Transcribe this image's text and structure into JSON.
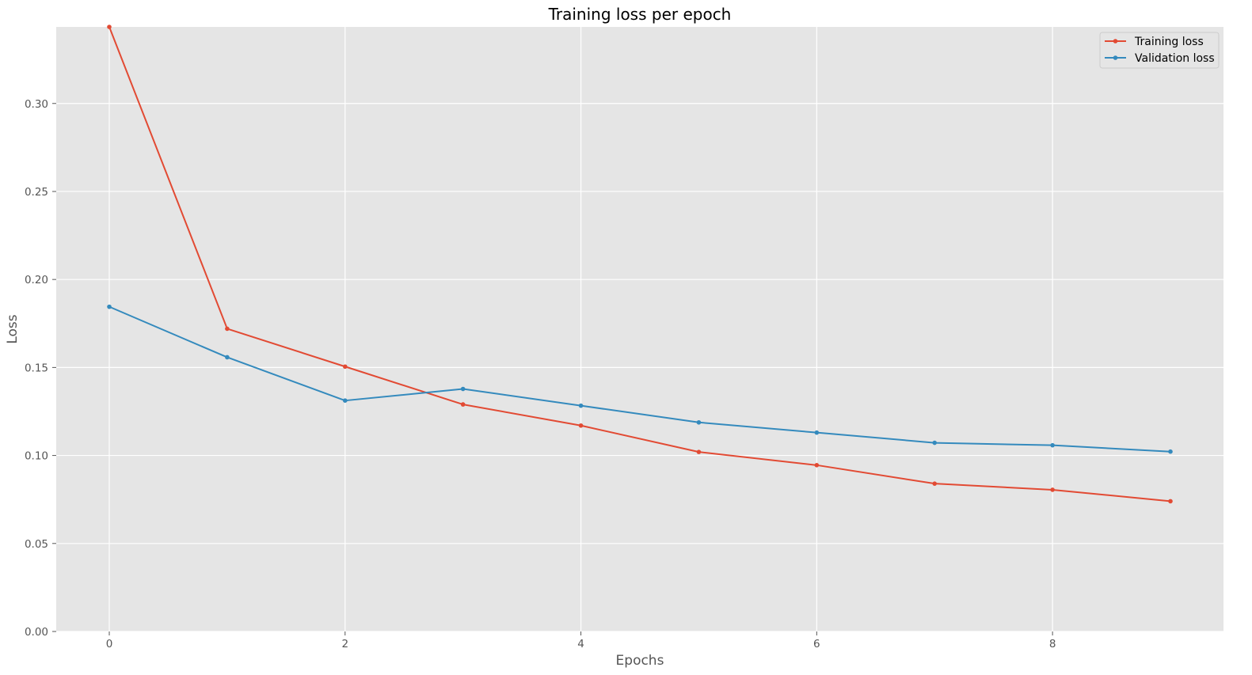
{
  "chart_data": {
    "type": "line",
    "title": "Training loss per epoch",
    "xlabel": "Epochs",
    "ylabel": "Loss",
    "xlim": [
      -0.45,
      9.45
    ],
    "ylim": [
      0.0,
      0.3435
    ],
    "xticks": [
      0,
      2,
      4,
      6,
      8
    ],
    "xtick_labels": [
      "0",
      "2",
      "4",
      "6",
      "8"
    ],
    "yticks": [
      0.0,
      0.05,
      0.1,
      0.15,
      0.2,
      0.25,
      0.3
    ],
    "ytick_labels": [
      "0.00",
      "0.05",
      "0.10",
      "0.15",
      "0.20",
      "0.25",
      "0.30"
    ],
    "grid": true,
    "legend_position": "top-right",
    "x": [
      0,
      1,
      2,
      3,
      4,
      5,
      6,
      7,
      8,
      9
    ],
    "series": [
      {
        "name": "Training loss",
        "color": "#E24A33",
        "values": [
          0.3435,
          0.172,
          0.1505,
          0.129,
          0.117,
          0.102,
          0.0945,
          0.084,
          0.0805,
          0.074
        ]
      },
      {
        "name": "Validation loss",
        "color": "#348ABD",
        "values": [
          0.1845,
          0.1558,
          0.1312,
          0.1378,
          0.1283,
          0.1188,
          0.113,
          0.1072,
          0.1058,
          0.1022
        ]
      }
    ],
    "colors": {
      "plot_background": "#E5E5E5",
      "grid": "#FFFFFF",
      "tick_label": "#555555"
    }
  }
}
